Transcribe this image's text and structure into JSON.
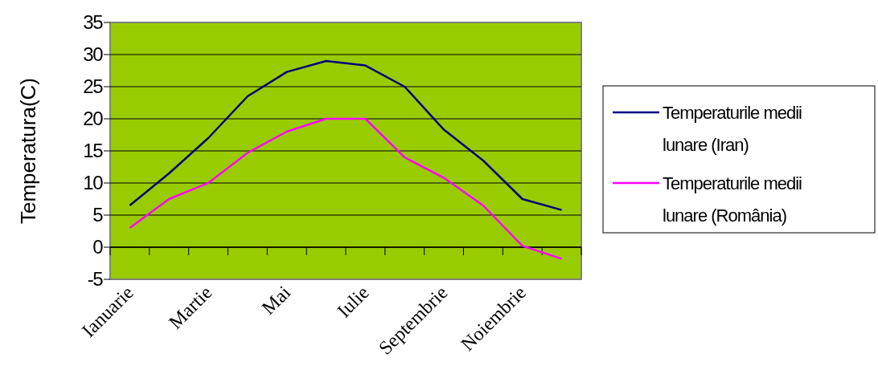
{
  "chart_data": {
    "type": "line",
    "ylabel": "Temperatura(C)",
    "categories": [
      "Ianuarie",
      null,
      "Martie",
      null,
      "Mai",
      null,
      "Iulie",
      null,
      "Septembrie",
      null,
      "Noiembrie",
      null
    ],
    "series": [
      {
        "name": "Temperaturile medii lunare (Iran)",
        "color": "#000080",
        "values": [
          6.5,
          11.5,
          17,
          23.5,
          27.3,
          29,
          28.3,
          25,
          18.3,
          13.5,
          7.5,
          5.8
        ]
      },
      {
        "name": "Temperaturile medii lunare (România)",
        "color": "#ff00ff",
        "values": [
          3,
          7.5,
          10,
          14.7,
          18,
          20,
          20,
          14,
          10.8,
          6.5,
          0.2,
          -1.8
        ]
      }
    ],
    "ylim": [
      -5,
      35
    ],
    "yticks": [
      -5,
      0,
      5,
      10,
      15,
      20,
      25,
      30,
      35
    ],
    "grid": "y",
    "legend": "right",
    "marker": "none",
    "line_style": "solid"
  }
}
